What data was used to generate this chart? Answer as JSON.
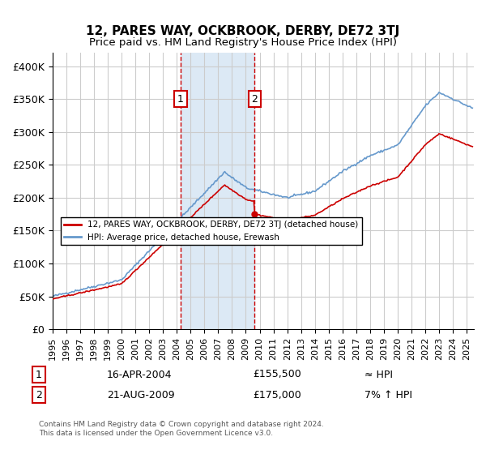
{
  "title": "12, PARES WAY, OCKBROOK, DERBY, DE72 3TJ",
  "subtitle": "Price paid vs. HM Land Registry's House Price Index (HPI)",
  "ylabel_ticks": [
    "£0",
    "£50K",
    "£100K",
    "£150K",
    "£200K",
    "£250K",
    "£300K",
    "£350K",
    "£400K"
  ],
  "ytick_values": [
    0,
    50000,
    100000,
    150000,
    200000,
    250000,
    300000,
    350000,
    400000
  ],
  "ylim": [
    0,
    420000
  ],
  "xlim_start": 1995.0,
  "xlim_end": 2025.5,
  "red_line_color": "#cc0000",
  "blue_line_color": "#6699cc",
  "shaded_region_color": "#dce9f5",
  "grid_color": "#cccccc",
  "marker1_year": 2004.29,
  "marker2_year": 2009.63,
  "marker1_value": 155500,
  "marker2_value": 175000,
  "sale1_date": "16-APR-2004",
  "sale1_price": "£155,500",
  "sale1_hpi": "≈ HPI",
  "sale2_date": "21-AUG-2009",
  "sale2_price": "£175,000",
  "sale2_hpi": "7% ↑ HPI",
  "legend_line1": "12, PARES WAY, OCKBROOK, DERBY, DE72 3TJ (detached house)",
  "legend_line2": "HPI: Average price, detached house, Erewash",
  "footnote": "Contains HM Land Registry data © Crown copyright and database right 2024.\nThis data is licensed under the Open Government Licence v3.0.",
  "xtick_years": [
    1995,
    1996,
    1997,
    1998,
    1999,
    2000,
    2001,
    2002,
    2003,
    2004,
    2005,
    2006,
    2007,
    2008,
    2009,
    2010,
    2011,
    2012,
    2013,
    2014,
    2015,
    2016,
    2017,
    2018,
    2019,
    2020,
    2021,
    2022,
    2023,
    2024,
    2025
  ]
}
